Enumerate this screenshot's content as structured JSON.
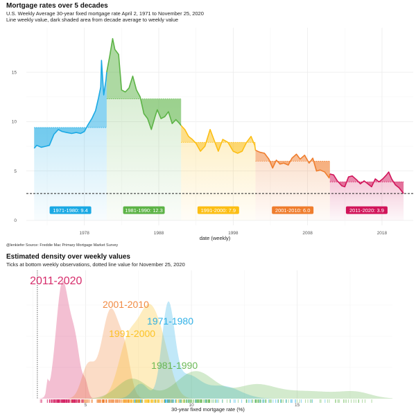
{
  "chart_data": [
    {
      "type": "line",
      "title": "Mortgage rates over 5 decades",
      "subtitle": "U.S. Weekly Average 30-year fixed mortgage rate April 2, 1971 to November 25, 2020",
      "subtitle2": "Line weekly value, dark shaded area from decade average to weekly value",
      "xlabel": "date (weekly)",
      "ylabel": "",
      "xlim": [
        1970.2,
        2022.2
      ],
      "ylim": [
        -0.5,
        19.5
      ],
      "x_ticks": [
        1978,
        1988,
        1998,
        2008,
        2018
      ],
      "y_ticks": [
        0,
        5,
        10,
        15
      ],
      "reference_line": 2.72,
      "caption": "@lenkiefer Source: Freddie Mac Primary Mortgage Market Survey",
      "series": [
        {
          "name": "1971-1980",
          "label": "1971-1980:  9.4",
          "average": 9.4,
          "color": "#1aa9e4",
          "x_range": [
            1971.25,
            1981.0
          ],
          "points": [
            [
              1971.25,
              7.3
            ],
            [
              1971.6,
              7.6
            ],
            [
              1972.2,
              7.4
            ],
            [
              1972.8,
              7.5
            ],
            [
              1973.3,
              7.6
            ],
            [
              1973.9,
              8.7
            ],
            [
              1974.5,
              9.2
            ],
            [
              1975.0,
              9.0
            ],
            [
              1975.6,
              8.9
            ],
            [
              1976.3,
              8.8
            ],
            [
              1976.9,
              8.9
            ],
            [
              1977.5,
              8.8
            ],
            [
              1978.0,
              9.0
            ],
            [
              1978.5,
              9.7
            ],
            [
              1979.0,
              10.3
            ],
            [
              1979.5,
              11.1
            ],
            [
              1979.9,
              12.4
            ],
            [
              1980.2,
              13.5
            ],
            [
              1980.3,
              16.2
            ],
            [
              1980.6,
              12.7
            ],
            [
              1980.9,
              14.2
            ],
            [
              1981.0,
              15.0
            ]
          ]
        },
        {
          "name": "1981-1990",
          "label": "1981-1990:  12.3",
          "average": 12.3,
          "color": "#5cb346",
          "x_range": [
            1981.0,
            1991.0
          ],
          "points": [
            [
              1981.0,
              15.0
            ],
            [
              1981.4,
              16.6
            ],
            [
              1981.8,
              18.4
            ],
            [
              1982.1,
              17.3
            ],
            [
              1982.6,
              16.8
            ],
            [
              1983.0,
              13.2
            ],
            [
              1983.5,
              13.0
            ],
            [
              1984.0,
              13.4
            ],
            [
              1984.5,
              14.6
            ],
            [
              1985.0,
              13.2
            ],
            [
              1985.5,
              12.5
            ],
            [
              1986.0,
              10.8
            ],
            [
              1986.5,
              10.3
            ],
            [
              1987.0,
              9.2
            ],
            [
              1987.5,
              10.5
            ],
            [
              1987.8,
              11.2
            ],
            [
              1988.3,
              10.3
            ],
            [
              1988.8,
              10.5
            ],
            [
              1989.3,
              11.0
            ],
            [
              1989.8,
              9.8
            ],
            [
              1990.3,
              10.2
            ],
            [
              1990.8,
              9.8
            ],
            [
              1991.0,
              9.6
            ]
          ]
        },
        {
          "name": "1991-2000",
          "label": "1991-2000:  7.9",
          "average": 7.9,
          "color": "#fcbe13",
          "x_range": [
            1991.0,
            2001.0
          ],
          "points": [
            [
              1991.0,
              9.6
            ],
            [
              1991.5,
              9.2
            ],
            [
              1992.0,
              8.5
            ],
            [
              1992.5,
              8.2
            ],
            [
              1993.0,
              7.8
            ],
            [
              1993.6,
              7.0
            ],
            [
              1994.2,
              7.5
            ],
            [
              1994.9,
              9.2
            ],
            [
              1995.5,
              8.0
            ],
            [
              1996.0,
              7.0
            ],
            [
              1996.6,
              8.2
            ],
            [
              1997.3,
              7.9
            ],
            [
              1998.0,
              7.0
            ],
            [
              1998.6,
              6.8
            ],
            [
              1999.2,
              7.0
            ],
            [
              1999.8,
              7.9
            ],
            [
              2000.4,
              8.5
            ],
            [
              2000.9,
              7.6
            ],
            [
              2001.0,
              7.1
            ]
          ]
        },
        {
          "name": "2001-2010",
          "label": "2001-2010:  6.0",
          "average": 6.0,
          "color": "#ef7d2d",
          "x_range": [
            2001.0,
            2011.0
          ],
          "points": [
            [
              2001.0,
              7.1
            ],
            [
              2001.6,
              6.9
            ],
            [
              2002.2,
              6.8
            ],
            [
              2002.8,
              6.2
            ],
            [
              2003.3,
              5.3
            ],
            [
              2003.8,
              6.1
            ],
            [
              2004.3,
              5.7
            ],
            [
              2004.8,
              5.8
            ],
            [
              2005.4,
              5.6
            ],
            [
              2005.9,
              6.3
            ],
            [
              2006.5,
              6.7
            ],
            [
              2007.0,
              6.2
            ],
            [
              2007.6,
              6.6
            ],
            [
              2008.2,
              5.8
            ],
            [
              2008.7,
              6.3
            ],
            [
              2009.2,
              5.0
            ],
            [
              2009.7,
              5.1
            ],
            [
              2010.3,
              4.9
            ],
            [
              2010.9,
              4.3
            ],
            [
              2011.0,
              4.7
            ]
          ]
        },
        {
          "name": "2011-2020",
          "label": "2011-2020:  3.9",
          "average": 3.9,
          "color": "#d1145a",
          "x_range": [
            2011.0,
            2020.9
          ],
          "points": [
            [
              2011.0,
              4.7
            ],
            [
              2011.5,
              4.6
            ],
            [
              2012.0,
              4.0
            ],
            [
              2012.6,
              3.5
            ],
            [
              2013.0,
              3.4
            ],
            [
              2013.5,
              4.4
            ],
            [
              2014.0,
              4.5
            ],
            [
              2014.6,
              4.1
            ],
            [
              2015.1,
              3.7
            ],
            [
              2015.6,
              4.0
            ],
            [
              2016.1,
              3.7
            ],
            [
              2016.6,
              3.4
            ],
            [
              2017.1,
              4.2
            ],
            [
              2017.6,
              3.9
            ],
            [
              2018.1,
              4.2
            ],
            [
              2018.6,
              4.6
            ],
            [
              2018.9,
              4.9
            ],
            [
              2019.3,
              4.2
            ],
            [
              2019.8,
              3.6
            ],
            [
              2020.3,
              3.3
            ],
            [
              2020.9,
              2.72
            ]
          ]
        }
      ]
    },
    {
      "type": "area",
      "title": "Estimated density over weekly  values",
      "subtitle": "Ticks at bottom weekly observations, dotted line value for November 25, 2020",
      "xlabel": "30-year fixed mortgage rate (%)",
      "xlim": [
        2.2,
        19.5
      ],
      "x_ticks": [
        5,
        10,
        15
      ],
      "reference_line": 2.72,
      "series": [
        {
          "name": "2011-2020",
          "peaks": [
            [
              3.2,
              0.05,
              0.1
            ],
            [
              3.9,
              0.3,
              0.92
            ],
            [
              4.5,
              0.25,
              0.42
            ],
            [
              5.0,
              0.12,
              0.1
            ]
          ]
        },
        {
          "name": "2001-2010",
          "peaks": [
            [
              5.1,
              0.3,
              0.25
            ],
            [
              6.2,
              0.45,
              0.72
            ],
            [
              6.9,
              0.25,
              0.22
            ]
          ]
        },
        {
          "name": "1991-2000",
          "peaks": [
            [
              7.0,
              0.45,
              0.45
            ],
            [
              7.9,
              0.45,
              0.58
            ],
            [
              8.6,
              0.45,
              0.38
            ]
          ]
        },
        {
          "name": "1971-1980",
          "peaks": [
            [
              7.6,
              0.35,
              0.12
            ],
            [
              8.9,
              0.3,
              0.72
            ],
            [
              9.8,
              0.6,
              0.18
            ],
            [
              11.5,
              0.8,
              0.1
            ]
          ]
        },
        {
          "name": "1981-1990",
          "peaks": [
            [
              7.2,
              0.7,
              0.16
            ],
            [
              10.2,
              0.9,
              0.22
            ],
            [
              13.0,
              0.9,
              0.1
            ],
            [
              15.5,
              1.5,
              0.06
            ],
            [
              17.8,
              0.7,
              0.04
            ]
          ]
        }
      ]
    }
  ]
}
